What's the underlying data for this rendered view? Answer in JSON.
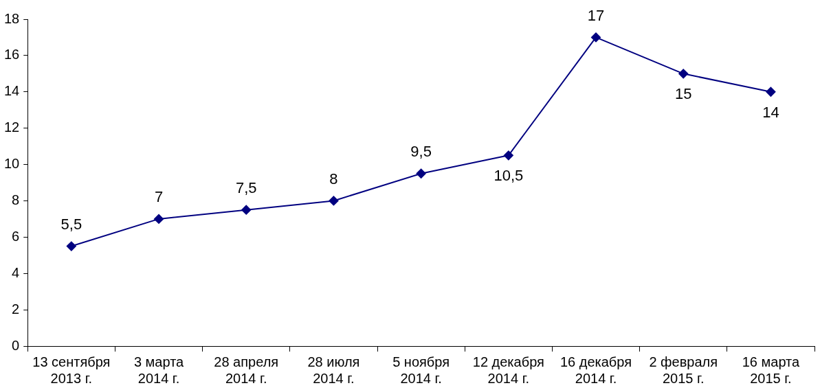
{
  "chart_data": {
    "type": "line",
    "categories": [
      "13 сентября\n2013 г.",
      "3 марта\n2014 г.",
      "28 апреля\n2014 г.",
      "28 июля\n2014 г.",
      "5 ноября\n2014 г.",
      "12 декабря\n2014 г.",
      "16 декабря\n2014 г.",
      "2 февраля\n2015 г.",
      "16 марта\n2015 г."
    ],
    "series": [
      {
        "color": "#000080",
        "values": [
          5.5,
          7,
          7.5,
          8,
          9.5,
          10.5,
          17,
          15,
          14
        ],
        "value_labels": [
          "5,5",
          "7",
          "7,5",
          "8",
          "9,5",
          "10,5",
          "17",
          "15",
          "14"
        ]
      }
    ],
    "ylim": [
      0,
      18
    ],
    "yticks": [
      0,
      2,
      4,
      6,
      8,
      10,
      12,
      14,
      16,
      18
    ],
    "grid": false,
    "legend": false,
    "marker": "diamond",
    "line_style": "solid"
  }
}
